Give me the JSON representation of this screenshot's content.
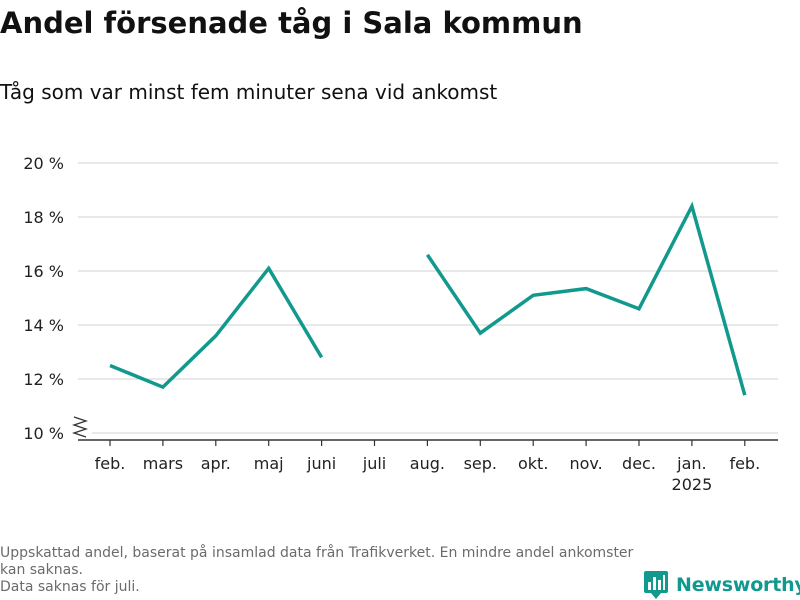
{
  "title": "Andel försenade tåg i Sala kommun",
  "subtitle": "Tåg som var minst fem minuter sena vid ankomst",
  "footnote": {
    "line1": "Uppskattad andel, baserat på insamlad data från Trafikverket. En mindre andel ankomster kan saknas.",
    "line2": "Data saknas för juli."
  },
  "brand": {
    "name": "Newsworthy",
    "color": "#12998e",
    "icon": "bar-chart-logo-icon"
  },
  "chart_data": {
    "type": "line",
    "categories": [
      "feb.",
      "mars",
      "apr.",
      "maj",
      "juni",
      "juli",
      "aug.",
      "sep.",
      "okt.",
      "nov.",
      "dec.",
      "jan.",
      "feb."
    ],
    "year_labels": [
      "",
      "",
      "",
      "",
      "",
      "",
      "",
      "",
      "",
      "",
      "",
      "2025",
      ""
    ],
    "series": [
      {
        "values": [
          12.5,
          11.7,
          13.6,
          16.1,
          12.8,
          null,
          16.6,
          13.7,
          15.1,
          15.35,
          14.6,
          18.4,
          11.4
        ],
        "color": "#12998e"
      }
    ],
    "ylim": [
      10,
      20
    ],
    "yticks": [
      10,
      12,
      14,
      16,
      18,
      20
    ],
    "ytick_labels": [
      "10 %",
      "12 %",
      "14 %",
      "16 %",
      "18 %",
      "20 %"
    ],
    "y_axis_break": true,
    "grid": true,
    "gridline_color": "#d9d9d9",
    "axis_color": "#333333"
  }
}
